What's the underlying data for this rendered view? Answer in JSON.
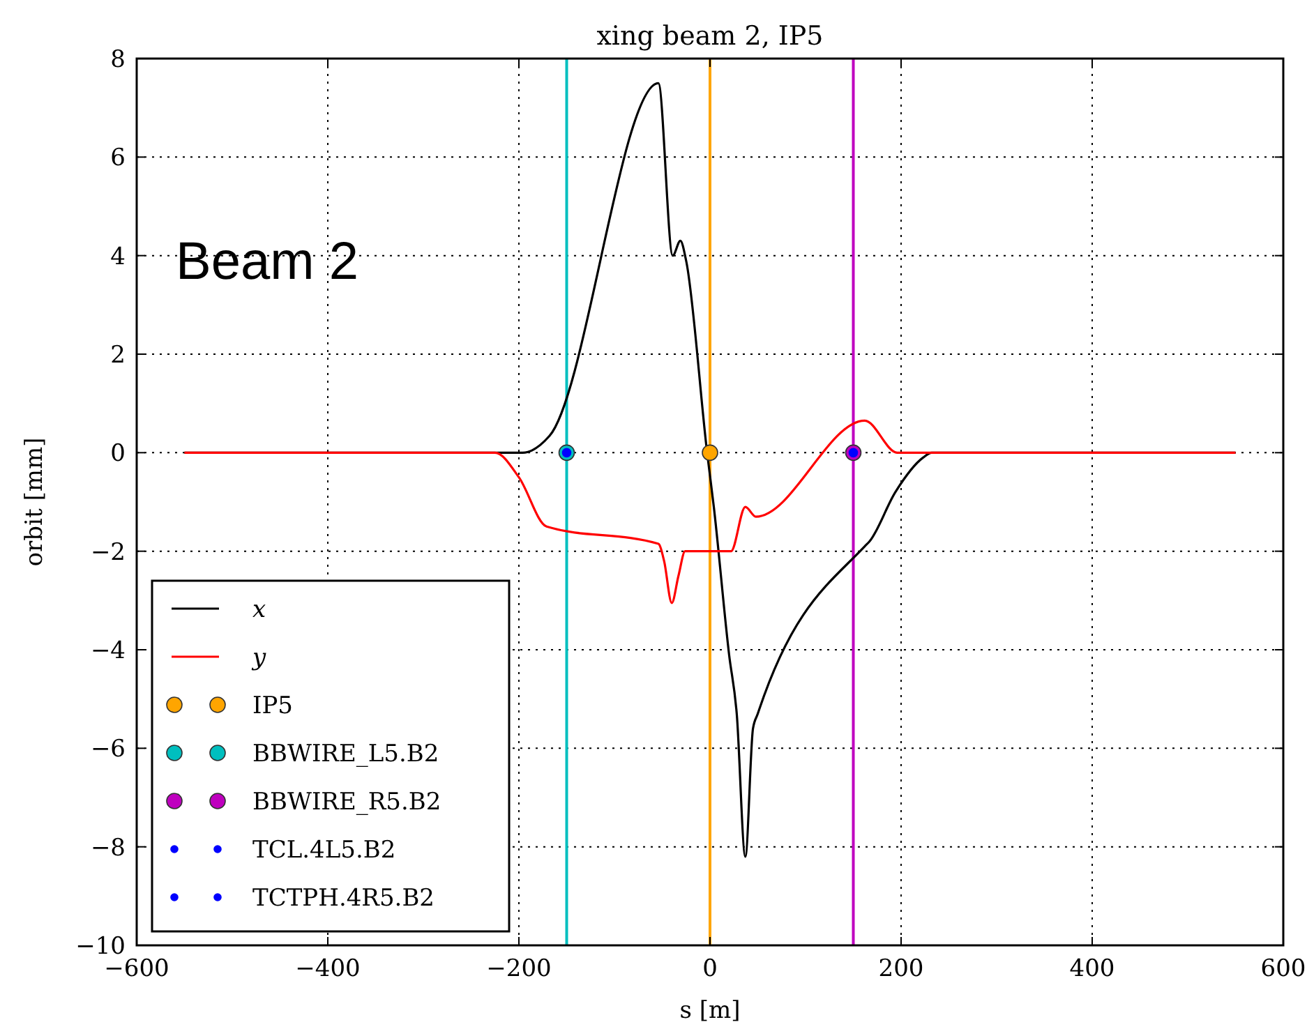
{
  "chart_data": {
    "type": "line",
    "title": "xing beam 2, IP5",
    "xlabel": "s [m]",
    "ylabel": "orbit [mm]",
    "annotations": [
      "Beam 2"
    ],
    "xlim": [
      -600,
      600
    ],
    "xticks": [
      -600,
      -400,
      -200,
      0,
      200,
      400,
      600
    ],
    "ylim": [
      -10,
      8
    ],
    "yticks": [
      -10,
      -8,
      -6,
      -4,
      -2,
      0,
      2,
      4,
      6,
      8
    ],
    "grid": true,
    "legend": "bottom left",
    "ref_lines": [
      {
        "axis": "x",
        "value": -150,
        "color": "#00bfbf"
      },
      {
        "axis": "x",
        "value": 0,
        "color": "#ffa500"
      },
      {
        "axis": "x",
        "value": 150,
        "color": "#bf00bf"
      }
    ],
    "series": [
      {
        "name": "x",
        "color": "#000000",
        "marker": "none",
        "x": [
          -550,
          -196,
          -168,
          -54,
          -39,
          -31,
          -25,
          -3,
          4,
          20,
          28,
          37,
          45,
          50,
          162,
          167,
          194,
          223,
          232,
          550
        ],
        "values": [
          0,
          0,
          0.34,
          7.5,
          4.0,
          4.3,
          3.9,
          0,
          -1.1,
          -4.1,
          -5.3,
          -8.2,
          -5.6,
          -5.3,
          -1.9,
          -1.8,
          -0.8,
          -0.1,
          0,
          0
        ]
      },
      {
        "name": "y",
        "color": "#ff0000",
        "marker": "none",
        "x": [
          -550,
          -225,
          -200,
          -171,
          -54,
          -48,
          -40,
          -33,
          -26,
          22,
          37,
          48,
          162,
          196,
          550
        ],
        "values": [
          0,
          0,
          -0.5,
          -1.5,
          -1.85,
          -2.2,
          -3.05,
          -2.5,
          -2.0,
          -2.0,
          -1.1,
          -1.3,
          0.65,
          0,
          0
        ]
      },
      {
        "name": "IP5",
        "type": "scatter",
        "color": "#ffa500",
        "marker": "circle",
        "x": [
          0
        ],
        "values": [
          0
        ]
      },
      {
        "name": "BBWIRE_L5.B2",
        "type": "scatter",
        "color": "#00bfbf",
        "marker": "circle",
        "x": [
          -150
        ],
        "values": [
          0
        ]
      },
      {
        "name": "BBWIRE_R5.B2",
        "type": "scatter",
        "color": "#bf00bf",
        "marker": "circle",
        "x": [
          150
        ],
        "values": [
          0
        ]
      },
      {
        "name": "TCL.4L5.B2",
        "type": "scatter",
        "color": "#0000ff",
        "marker": "circle",
        "x": [
          -150
        ],
        "values": [
          0
        ]
      },
      {
        "name": "TCTPH.4R5.B2",
        "type": "scatter",
        "color": "#0000ff",
        "marker": "circle",
        "x": [
          150
        ],
        "values": [
          0
        ]
      }
    ]
  }
}
